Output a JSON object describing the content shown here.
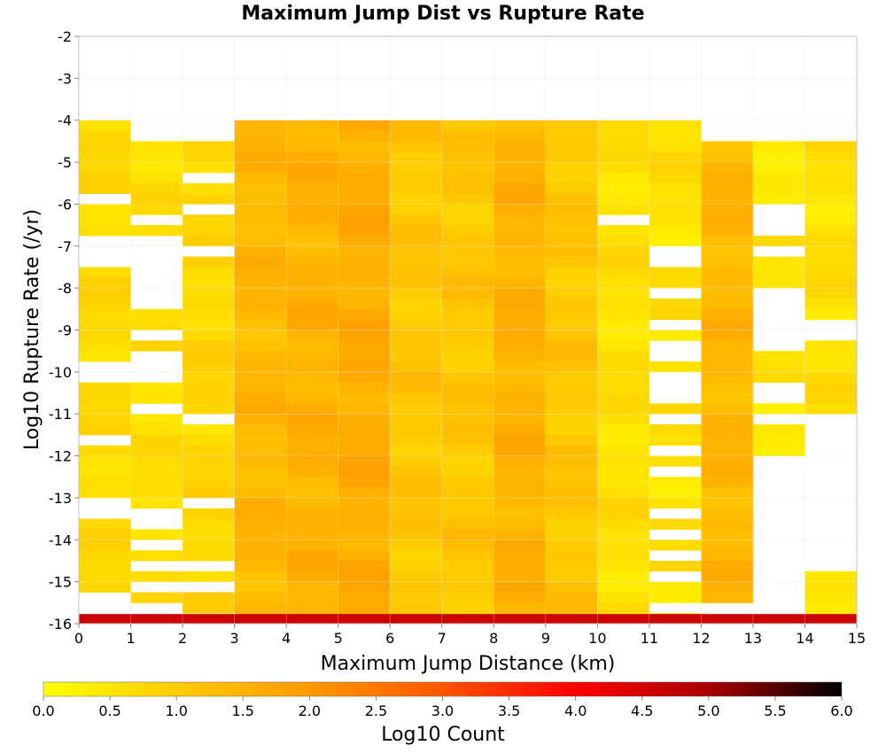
{
  "chart_data": {
    "type": "heatmap",
    "title": "Maximum Jump Dist vs Rupture Rate",
    "xlabel": "Maximum Jump Distance (km)",
    "ylabel": "Log10 Rupture Rate (/yr)",
    "xlim": [
      0,
      15
    ],
    "ylim": [
      -16,
      -2
    ],
    "x_ticks": [
      "0",
      "1",
      "2",
      "3",
      "4",
      "5",
      "6",
      "7",
      "8",
      "9",
      "10",
      "11",
      "12",
      "13",
      "14",
      "15"
    ],
    "y_ticks": [
      "-2",
      "-3",
      "-4",
      "-5",
      "-6",
      "-7",
      "-8",
      "-9",
      "-10",
      "-11",
      "-12",
      "-13",
      "-14",
      "-15",
      "-16"
    ],
    "grid": true,
    "colorbar": {
      "label": "Log10 Count",
      "range": [
        0,
        6
      ],
      "ticks": [
        "0.0",
        "0.5",
        "1.0",
        "1.5",
        "2.0",
        "2.5",
        "3.0",
        "3.5",
        "4.0",
        "4.5",
        "5.0",
        "5.5",
        "6.0"
      ],
      "stops": [
        "#ffff00",
        "#ffcc00",
        "#ff9900",
        "#ff5500",
        "#ff0000",
        "#aa0000",
        "#000000"
      ]
    },
    "x_bin_width": 1,
    "y_bin_height": 0.25,
    "bottom_row_log10_rate": -15.875,
    "bottom_row_values": [
      4.6,
      4.6,
      4.6,
      4.6,
      4.6,
      4.6,
      4.6,
      4.6,
      4.6,
      4.6,
      4.6,
      4.6,
      4.6,
      4.6,
      4.6
    ],
    "columns": [
      {
        "x": 0.5,
        "rate_min": -15.75,
        "rate_max": -4.0,
        "level": 0.7,
        "gaps": [
          -15.625,
          -15.375,
          -13.375,
          -13.125,
          -11.625,
          -10.125,
          -9.875,
          -7.375,
          -7.125,
          -6.875,
          -5.875
        ]
      },
      {
        "x": 1.5,
        "rate_min": -15.5,
        "rate_max": -4.5,
        "level": 0.6,
        "gaps": [
          -15.125,
          -14.625,
          -14.125,
          -13.625,
          -13.375,
          -10.875,
          -10.125,
          -9.875,
          -9.625,
          -9.125,
          -8.375,
          -8.125,
          -7.875,
          -7.625,
          -7.375,
          -7.125,
          -6.875,
          -6.375
        ]
      },
      {
        "x": 2.5,
        "rate_min": -15.75,
        "rate_max": -4.5,
        "level": 0.8,
        "gaps": [
          -15.125,
          -14.625,
          -13.125,
          -11.125,
          -7.125,
          -6.125,
          -5.375
        ]
      },
      {
        "x": 3.5,
        "rate_min": -16.0,
        "rate_max": -4.0,
        "level": 1.4,
        "gaps": []
      },
      {
        "x": 4.5,
        "rate_min": -16.0,
        "rate_max": -4.0,
        "level": 1.5,
        "gaps": []
      },
      {
        "x": 5.5,
        "rate_min": -16.0,
        "rate_max": -4.0,
        "level": 1.6,
        "gaps": []
      },
      {
        "x": 6.5,
        "rate_min": -16.0,
        "rate_max": -4.0,
        "level": 1.1,
        "gaps": []
      },
      {
        "x": 7.5,
        "rate_min": -16.0,
        "rate_max": -4.0,
        "level": 1.1,
        "gaps": []
      },
      {
        "x": 8.5,
        "rate_min": -16.0,
        "rate_max": -4.0,
        "level": 1.5,
        "gaps": []
      },
      {
        "x": 9.5,
        "rate_min": -16.0,
        "rate_max": -4.0,
        "level": 1.1,
        "gaps": []
      },
      {
        "x": 10.5,
        "rate_min": -16.0,
        "rate_max": -4.0,
        "level": 0.6,
        "gaps": [
          -6.375
        ]
      },
      {
        "x": 11.5,
        "rate_min": -16.0,
        "rate_max": -4.0,
        "level": 0.6,
        "gaps": [
          -15.625,
          -14.875,
          -14.375,
          -13.875,
          -13.375,
          -12.375,
          -11.875,
          -11.125,
          -10.625,
          -10.375,
          -10.125,
          -9.625,
          -9.375,
          -8.875,
          -8.125,
          -7.375,
          -7.125
        ]
      },
      {
        "x": 12.5,
        "rate_min": -15.5,
        "rate_max": -4.5,
        "level": 1.4,
        "gaps": []
      },
      {
        "x": 13.5,
        "rate_min": -12.0,
        "rate_max": -4.5,
        "level": 0.5,
        "gaps": [
          -11.125,
          -10.625,
          -10.375,
          -9.375,
          -9.125,
          -8.875,
          -8.625,
          -8.375,
          -8.125,
          -7.125,
          -6.625,
          -6.375,
          -6.125
        ]
      },
      {
        "x": 14.5,
        "rate_min": -16.0,
        "rate_max": -4.5,
        "level": 0.6,
        "gaps": [
          -14.625,
          -14.375,
          -14.125,
          -13.875,
          -13.625,
          -13.375,
          -13.125,
          -12.875,
          -12.625,
          -12.375,
          -12.125,
          -11.875,
          -11.625,
          -11.375,
          -11.125,
          -9.125,
          -8.875
        ]
      }
    ]
  }
}
